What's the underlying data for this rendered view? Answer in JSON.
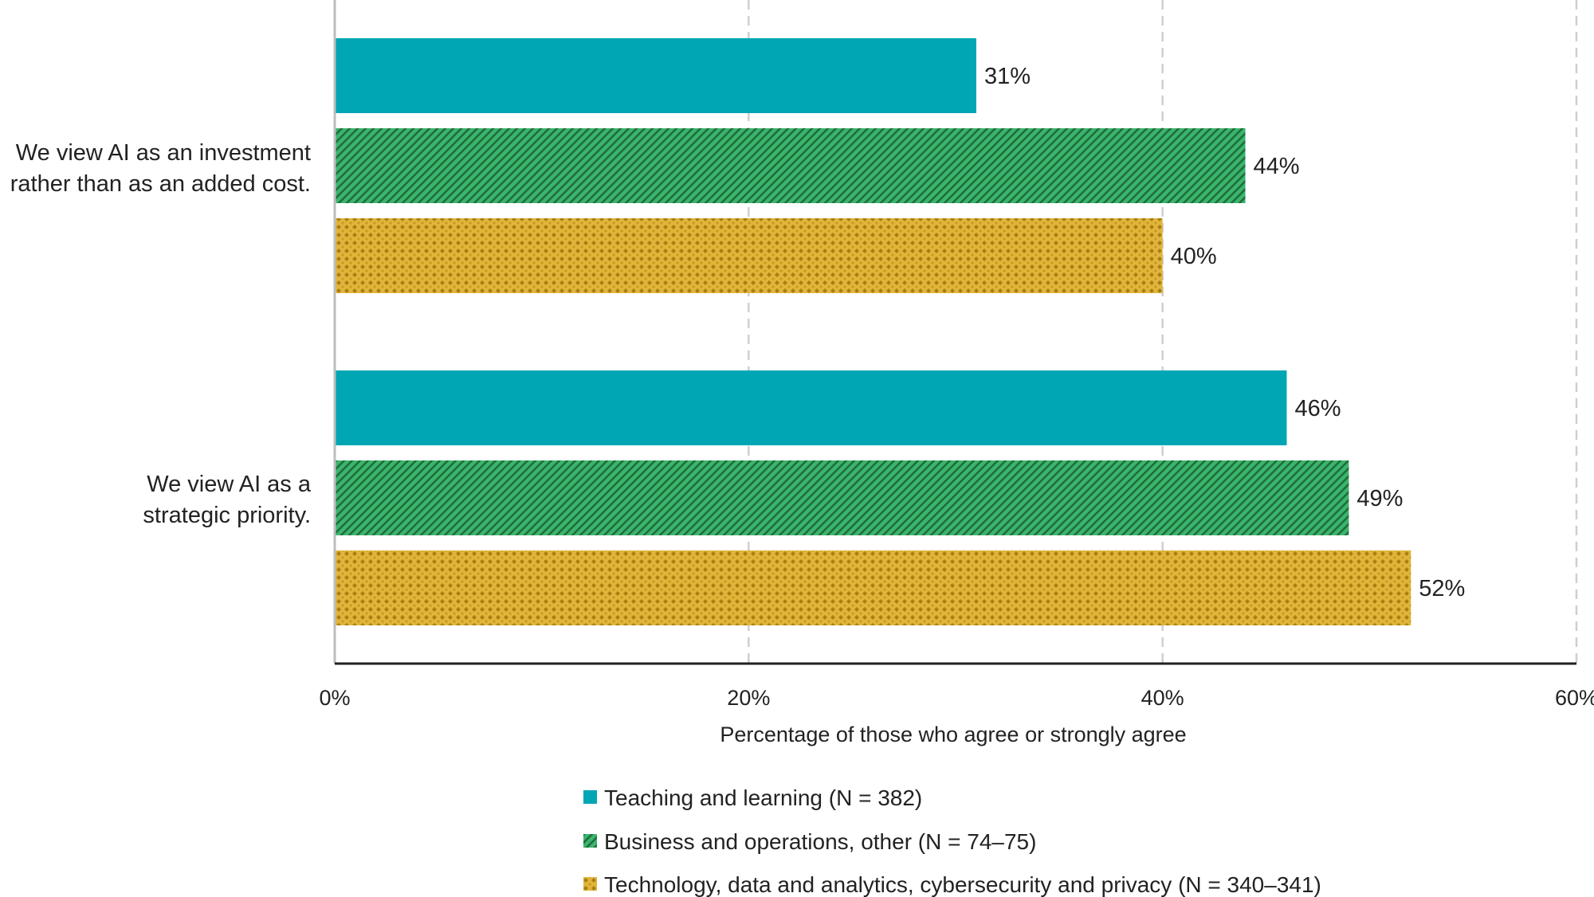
{
  "chart_data": {
    "type": "bar",
    "orientation": "horizontal",
    "categories": [
      "We view AI as an investment rather than as an added cost.",
      "We view AI as a strategic priority."
    ],
    "category_lines": [
      [
        "We view AI as an investment",
        "rather than as an added cost."
      ],
      [
        "We view AI as a",
        "strategic priority."
      ]
    ],
    "series": [
      {
        "name": "Teaching and learning (N = 382)",
        "values": [
          31,
          46
        ],
        "color": "#00a6b4",
        "pattern": "solid"
      },
      {
        "name": "Business and operations, other (N = 74–75)",
        "values": [
          44,
          49
        ],
        "color": "#3bb56c",
        "pattern": "diagonal-stripes"
      },
      {
        "name": "Technology, data and analytics, cybersecurity and privacy (N = 340–341)",
        "values": [
          40,
          52
        ],
        "color": "#d4a72a",
        "pattern": "diamond-dots"
      }
    ],
    "value_suffix": "%",
    "xlabel": "Percentage of those who agree or strongly agree",
    "xlim": [
      0,
      60
    ],
    "xticks": [
      0,
      20,
      40,
      60
    ],
    "xtick_labels": [
      "0%",
      "20%",
      "40%",
      "60%"
    ],
    "grid": "vertical dashed",
    "legend_position": "bottom"
  }
}
